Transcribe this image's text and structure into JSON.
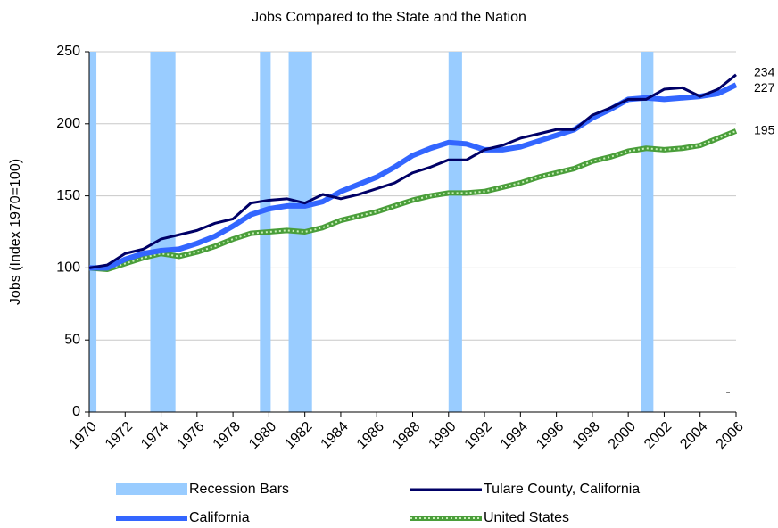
{
  "chart_data": {
    "type": "line",
    "title": "Jobs Compared to the State and the Nation",
    "y_label": "Jobs (Index 1970=100)",
    "x": [
      1970,
      1971,
      1972,
      1973,
      1974,
      1975,
      1976,
      1977,
      1978,
      1979,
      1980,
      1981,
      1982,
      1983,
      1984,
      1985,
      1986,
      1987,
      1988,
      1989,
      1990,
      1991,
      1992,
      1993,
      1994,
      1995,
      1996,
      1997,
      1998,
      1999,
      2000,
      2001,
      2002,
      2003,
      2004,
      2005,
      2006
    ],
    "xlim": [
      1970,
      2006
    ],
    "xticks": [
      1970,
      1972,
      1974,
      1976,
      1978,
      1980,
      1982,
      1984,
      1986,
      1988,
      1990,
      1992,
      1994,
      1996,
      1998,
      2000,
      2002,
      2004,
      2006
    ],
    "ylim": [
      0,
      250
    ],
    "yticks": [
      0,
      50,
      100,
      150,
      200,
      250
    ],
    "grid": true,
    "recessions": {
      "name": "Recession Bars",
      "color": "#99ccff",
      "ranges": [
        [
          1970,
          1970.4
        ],
        [
          1973.4,
          1974.8
        ],
        [
          1979.5,
          1980.1
        ],
        [
          1981.1,
          1982.4
        ],
        [
          1990,
          1990.75
        ],
        [
          2000.7,
          2001.4
        ]
      ]
    },
    "series": [
      {
        "name": "Tulare County, California",
        "color": "#000066",
        "width": 3,
        "values": [
          100,
          102,
          110,
          113,
          120,
          123,
          126,
          131,
          134,
          145,
          147,
          148,
          145,
          151,
          148,
          151,
          155,
          159,
          166,
          170,
          175,
          175,
          182,
          185,
          190,
          193,
          196,
          196,
          206,
          211,
          217,
          217,
          224,
          225,
          219,
          224,
          234
        ]
      },
      {
        "name": "California",
        "color": "#3366ff",
        "width": 6,
        "values": [
          100,
          100,
          106,
          110,
          112,
          113,
          117,
          122,
          129,
          137,
          141,
          143,
          143,
          146,
          153,
          158,
          163,
          170,
          178,
          183,
          187,
          186,
          182,
          182,
          184,
          188,
          192,
          196,
          204,
          210,
          217,
          218,
          217,
          218,
          219,
          221,
          227
        ]
      },
      {
        "name": "United States",
        "color": "#4a9e3a",
        "width": 6,
        "values": [
          100,
          99,
          103,
          107,
          110,
          108,
          111,
          115,
          120,
          124,
          125,
          126,
          125,
          128,
          133,
          136,
          139,
          143,
          147,
          150,
          152,
          152,
          153,
          156,
          159,
          163,
          166,
          169,
          174,
          177,
          181,
          183,
          182,
          183,
          185,
          190,
          195
        ]
      }
    ],
    "annotation": "-"
  }
}
